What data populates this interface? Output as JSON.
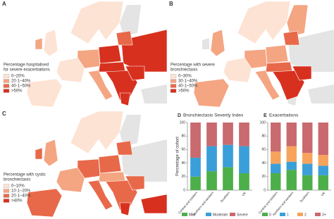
{
  "maps": [
    {
      "panel": "A",
      "legend_title": [
        "Percentage hospitalised",
        "for severe exacerbations"
      ],
      "legend": [
        "0–20%",
        "20·1–40%",
        "40·1–50%",
        ">50%"
      ],
      "colors": [
        "#fde3d4",
        "#f4a582",
        "#e8694a",
        "#d7301f"
      ]
    },
    {
      "panel": "B",
      "legend_title": [
        "Percentage with severe",
        "bronchiectasis"
      ],
      "legend": [
        "0–30%",
        "30·1–40%",
        "40·1–50%",
        ">50%"
      ],
      "colors": [
        "#fde3d4",
        "#f4a582",
        "#e8694a",
        "#d7301f"
      ]
    },
    {
      "panel": "C",
      "legend_title": [
        "Percentage with cystic",
        "bronchiectasis"
      ],
      "legend": [
        "0–10%",
        "10·1–20%",
        "20·1–40%",
        ">40%"
      ],
      "colors": [
        "#fde3d4",
        "#f4a582",
        "#e8694a",
        "#d7301f"
      ]
    }
  ],
  "chart_data": [
    {
      "type": "bar",
      "panel": "D",
      "title": "Bronchiectasis Severity Index",
      "ylabel": "Percentage of cohort",
      "categories": [
        "Central and eastern",
        "Northern and western",
        "Southern",
        "UK"
      ],
      "series": [
        {
          "name": "Mild",
          "color": "#4daf4a",
          "values": [
            20,
            28,
            34,
            25
          ]
        },
        {
          "name": "Moderate",
          "color": "#3a9fd8",
          "values": [
            28,
            37,
            33,
            40
          ]
        },
        {
          "name": "Severe",
          "color": "#c96a6e",
          "values": [
            52,
            35,
            33,
            35
          ]
        }
      ],
      "ylim": [
        0,
        100
      ],
      "yticks": [
        0,
        20,
        40,
        60,
        80,
        100
      ],
      "stacked": true
    },
    {
      "type": "bar",
      "panel": "E",
      "title": "Exacerbations",
      "categories": [
        "Central and eastern",
        "Northern and western",
        "Southern",
        "UK"
      ],
      "series": [
        {
          "name": "0",
          "color": "#4daf4a",
          "values": [
            25,
            30,
            22,
            22
          ]
        },
        {
          "name": "1",
          "color": "#3a9fd8",
          "values": [
            14,
            12,
            17,
            14
          ]
        },
        {
          "name": "2",
          "color": "#f7a35c",
          "values": [
            18,
            23,
            16,
            16
          ]
        },
        {
          "name": "3+",
          "color": "#c96a6e",
          "values": [
            43,
            35,
            45,
            48
          ]
        }
      ],
      "ylim": [
        0,
        100
      ],
      "yticks": [
        0,
        20,
        40,
        60,
        80,
        100
      ],
      "stacked": true
    }
  ]
}
